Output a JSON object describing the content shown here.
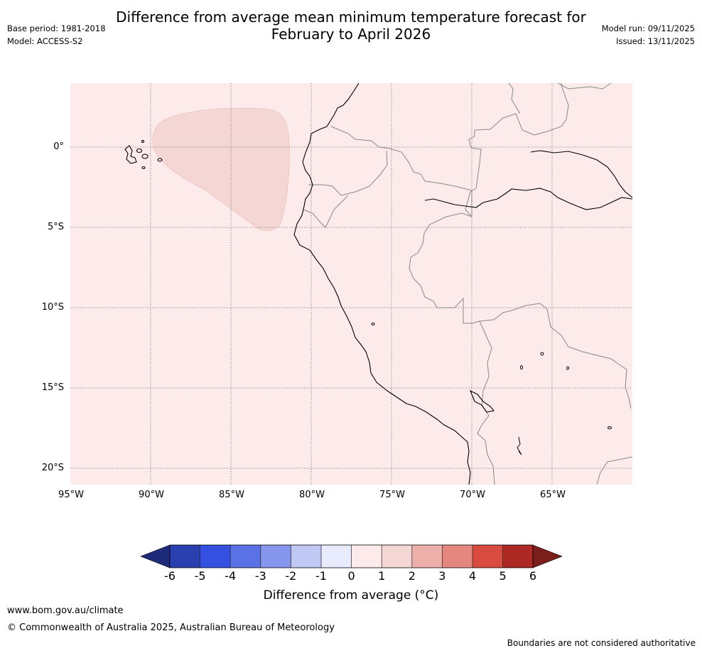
{
  "title_line1": "Difference from average mean minimum temperature forecast for",
  "title_line2": "February to April 2026",
  "base_period": "Base period: 1981-2018",
  "model": "Model: ACCESS-S2",
  "model_run": "Model run: 09/11/2025",
  "issued": "Issued: 13/11/2025",
  "lat_labels": [
    "0°",
    "5°S",
    "10°S",
    "15°S",
    "20°S"
  ],
  "lon_labels": [
    "95°W",
    "90°W",
    "85°W",
    "80°W",
    "75°W",
    "70°W",
    "65°W"
  ],
  "colorbar": {
    "title": "Difference from average (°C)",
    "ticks": [
      "-6",
      "-5",
      "-4",
      "-3",
      "-2",
      "-1",
      "0",
      "1",
      "2",
      "3",
      "4",
      "5",
      "6"
    ],
    "colors": [
      "#1e2a7a",
      "#2a3fb0",
      "#3350e0",
      "#5a72e6",
      "#8596ec",
      "#c0c8f4",
      "#e8ebfb",
      "#fcebea",
      "#f4d6d5",
      "#eeaeaa",
      "#e6877f",
      "#d94a40",
      "#ad2a24",
      "#7a1f1a"
    ]
  },
  "map": {
    "background_category": "0 to 1",
    "region_category": "1 to 2",
    "background_color": "#fcebea",
    "region_color": "#f4d6d5"
  },
  "footer_url": "www.bom.gov.au/climate",
  "copyright": "© Commonwealth of Australia 2025, Australian Bureau of Meteorology",
  "disclaimer": "Boundaries are not considered authoritative"
}
